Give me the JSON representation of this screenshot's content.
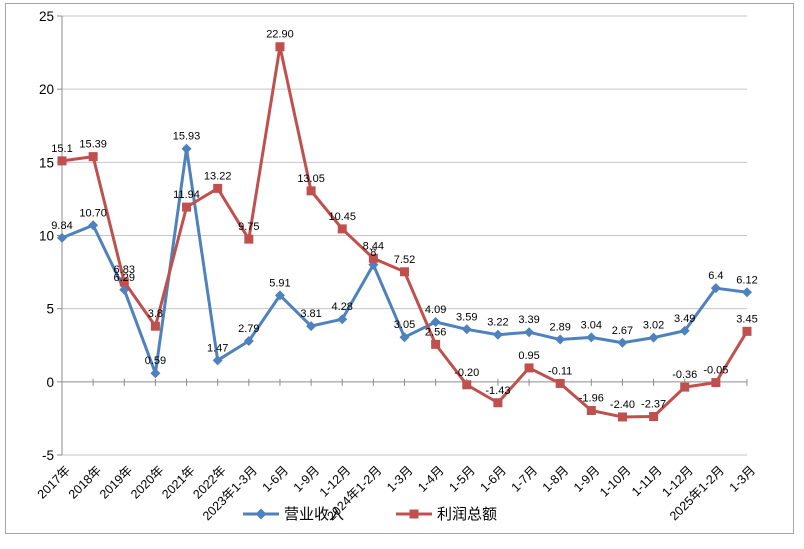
{
  "chart_data": {
    "type": "line",
    "categories": [
      "2017年",
      "2018年",
      "2019年",
      "2020年",
      "2021年",
      "2022年",
      "2023年1-3月",
      "1-6月",
      "1-9月",
      "1-12月",
      "2024年1-2月",
      "1-3月",
      "1-4月",
      "1-5月",
      "1-6月",
      "1-7月",
      "1-8月",
      "1-9月",
      "1-10月",
      "1-11月",
      "1-12月",
      "2025年1-2月",
      "1-3月"
    ],
    "series": [
      {
        "name": "营业收入",
        "color": "#4F81BD",
        "marker": "diamond",
        "values": [
          9.84,
          10.7,
          6.29,
          0.59,
          15.93,
          1.47,
          2.79,
          5.91,
          3.81,
          4.28,
          8,
          3.05,
          4.09,
          3.59,
          3.22,
          3.39,
          2.89,
          3.04,
          2.67,
          3.02,
          3.49,
          6.4,
          6.12
        ],
        "labels": [
          "9.84",
          "10.70",
          "6.29",
          "0.59",
          "15.93",
          "1.47",
          "2.79",
          "5.91",
          "3.81",
          "4.28",
          "8",
          "3.05",
          "4.09",
          "3.59",
          "3.22",
          "3.39",
          "2.89",
          "3.04",
          "2.67",
          "3.02",
          "3.49",
          "6.4",
          "6.12"
        ]
      },
      {
        "name": "利润总额",
        "color": "#C0504D",
        "marker": "square",
        "values": [
          15.1,
          15.39,
          6.83,
          3.8,
          11.94,
          13.22,
          9.75,
          22.9,
          13.05,
          10.45,
          8.44,
          7.52,
          2.56,
          -0.2,
          -1.43,
          0.95,
          -0.11,
          -1.96,
          -2.4,
          -2.37,
          -0.36,
          -0.05,
          3.45
        ],
        "labels": [
          "15.1",
          "15.39",
          "6.83",
          "3.8",
          "11.94",
          "13.22",
          "9.75",
          "22.90",
          "13.05",
          "10.45",
          "8.44",
          "7.52",
          "2.56",
          "-0.20",
          "-1.43",
          "0.95",
          "-0.11",
          "-1.96",
          "-2.40",
          "-2.37",
          "-0.36",
          "-0.05",
          "3.45"
        ]
      }
    ],
    "title": "",
    "xlabel": "",
    "ylabel": "",
    "ylim": [
      -5,
      25
    ],
    "yticks": [
      -5,
      0,
      5,
      10,
      15,
      20,
      25
    ],
    "grid": true,
    "legend_position": "bottom",
    "colors": {
      "grid": "#c6c6c6",
      "axis": "#8c8c8c",
      "text": "#000000"
    }
  }
}
